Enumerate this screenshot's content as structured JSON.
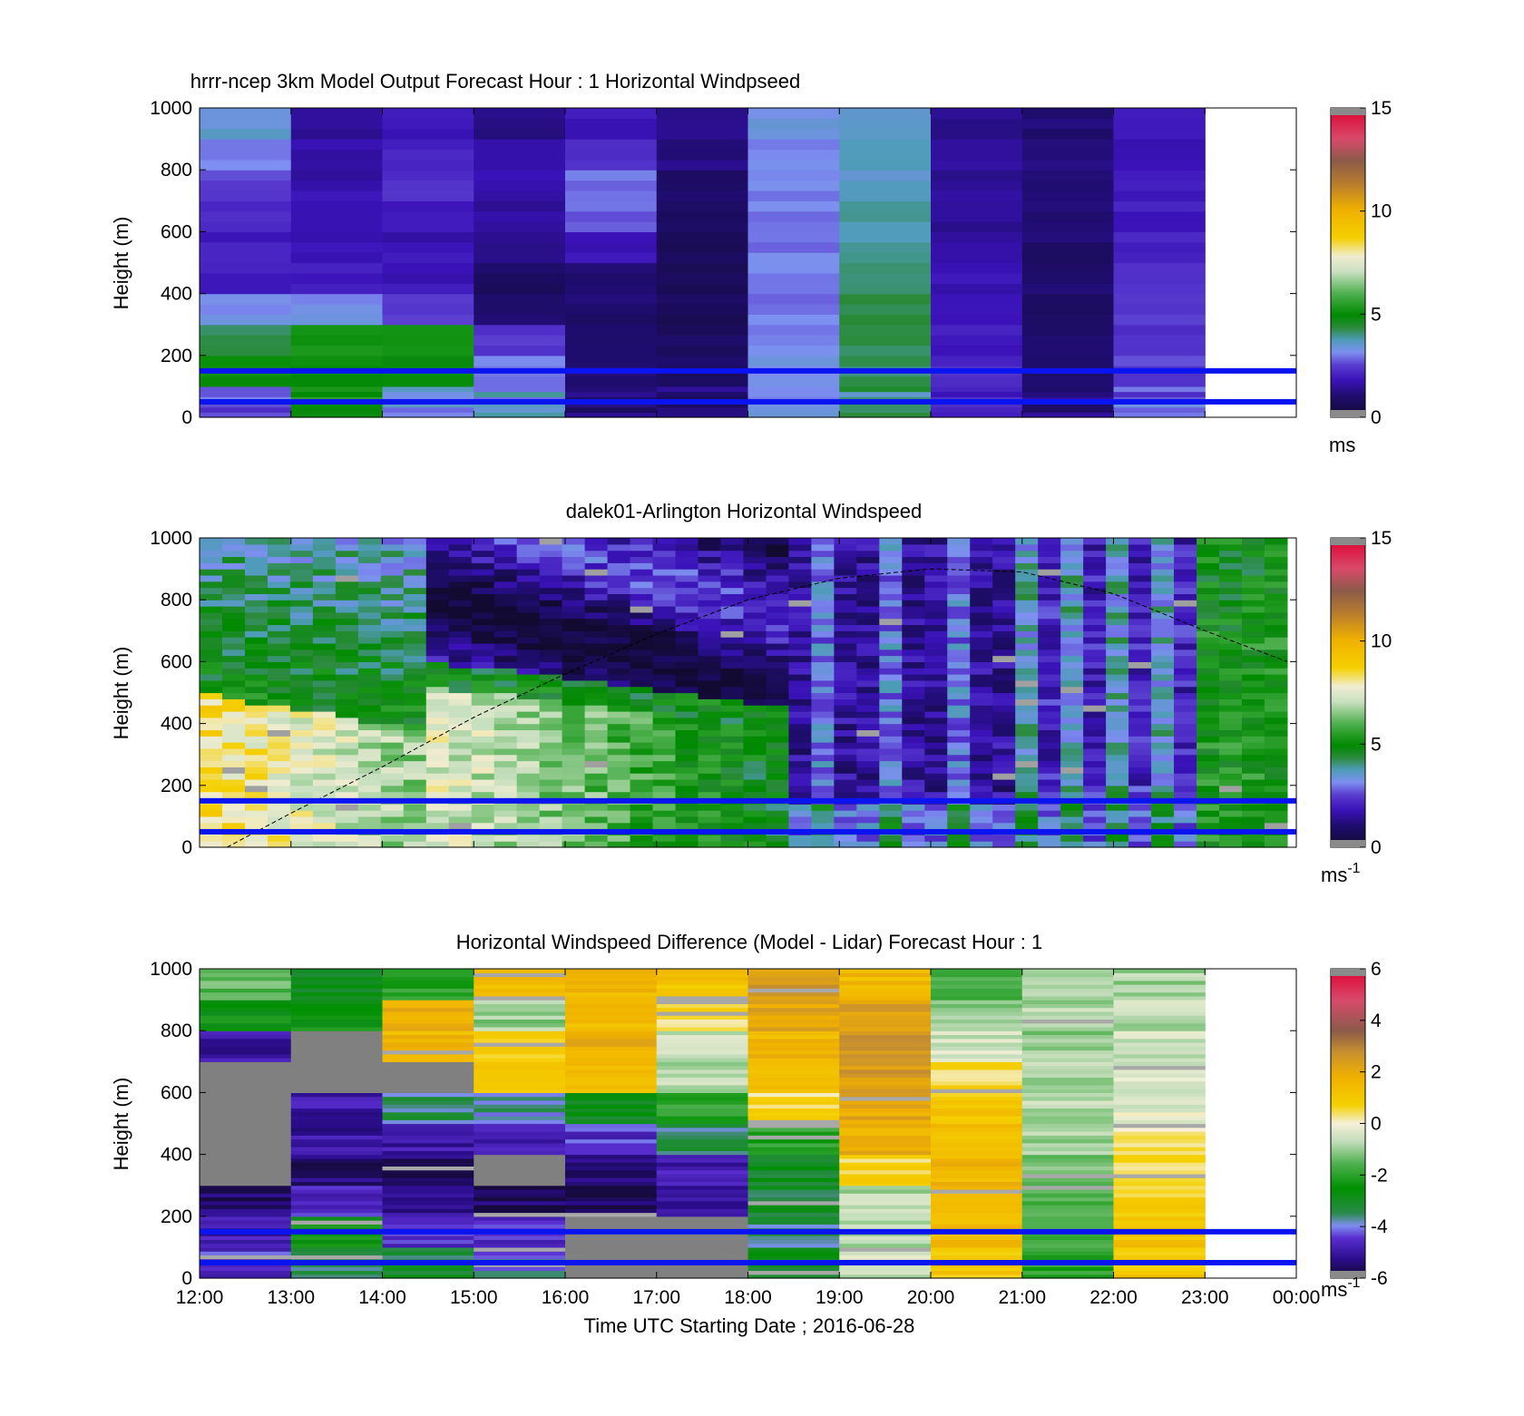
{
  "chart_data": [
    {
      "type": "heatmap",
      "title": "hrrr-ncep 3km Model Output   Forecast Hour : 1 Horizontal Windpseed",
      "ylabel": "Height (m)",
      "ylim": [
        0,
        1000
      ],
      "yticks": [
        "0",
        "200",
        "400",
        "600",
        "800",
        "1000"
      ],
      "x_categories": [
        "12:00",
        "13:00",
        "14:00",
        "15:00",
        "16:00",
        "17:00",
        "18:00",
        "19:00",
        "20:00",
        "21:00",
        "22:00",
        "23:00"
      ],
      "height_levels": [
        0,
        100,
        200,
        300,
        400,
        500,
        600,
        700,
        800,
        900
      ],
      "columns": [
        [
          2.5,
          5.0,
          4.2,
          3.2,
          2.0,
          2.0,
          2.2,
          2.5,
          3.0,
          3.5
        ],
        [
          5.0,
          5.0,
          5.2,
          3.2,
          2.0,
          1.8,
          1.8,
          1.7,
          1.7,
          1.6
        ],
        [
          3.2,
          5.0,
          5.2,
          2.5,
          1.8,
          1.8,
          1.9,
          2.3,
          2.0,
          1.9
        ],
        [
          3.4,
          3.0,
          2.4,
          1.0,
          0.9,
          1.2,
          1.5,
          1.8,
          1.6,
          1.2
        ],
        [
          1.2,
          1.1,
          1.1,
          1.0,
          1.0,
          1.8,
          2.8,
          3.0,
          2.4,
          1.9
        ],
        [
          1.0,
          0.9,
          0.8,
          0.7,
          0.7,
          0.7,
          0.8,
          1.0,
          1.3,
          1.4
        ],
        [
          3.2,
          3.2,
          3.0,
          3.0,
          3.0,
          3.0,
          3.0,
          3.0,
          3.0,
          3.3
        ],
        [
          4.0,
          4.2,
          4.2,
          4.2,
          4.2,
          3.8,
          3.8,
          3.6,
          3.6,
          3.7
        ],
        [
          2.3,
          2.2,
          2.0,
          1.8,
          1.8,
          1.6,
          1.5,
          1.5,
          1.4,
          1.4
        ],
        [
          1.0,
          1.0,
          1.0,
          1.0,
          1.0,
          1.0,
          1.0,
          1.0,
          1.1,
          1.1
        ],
        [
          2.8,
          2.5,
          2.4,
          2.4,
          2.2,
          2.1,
          2.0,
          1.9,
          1.9,
          1.9
        ]
      ],
      "reference_lines_m": [
        50,
        150
      ],
      "colorbar": {
        "min": 0,
        "max": 15,
        "ticks": [
          "0",
          "5",
          "10",
          "15"
        ],
        "unit": "ms"
      }
    },
    {
      "type": "heatmap",
      "title": "dalek01-Arlington  Horizontal Windspeed",
      "ylabel": "Height (m)",
      "ylim": [
        0,
        1000
      ],
      "yticks": [
        "0",
        "200",
        "400",
        "600",
        "800",
        "1000"
      ],
      "x_categories": [
        "12:00",
        "13:00",
        "14:00",
        "15:00",
        "16:00",
        "17:00",
        "18:00",
        "19:00",
        "20:00",
        "21:00",
        "22:00",
        "23:00"
      ],
      "time_range_hours": [
        12,
        24
      ],
      "observed_until_hour": 23.9,
      "reference_lines_m": [
        50,
        150
      ],
      "boundary_layer_curve": {
        "hours": [
          12.3,
          13,
          14,
          15,
          16,
          17,
          18,
          19,
          20,
          21,
          22,
          23,
          23.9
        ],
        "height_m": [
          0,
          110,
          260,
          420,
          560,
          690,
          800,
          870,
          900,
          890,
          820,
          700,
          600
        ]
      },
      "colorbar": {
        "min": 0,
        "max": 15,
        "ticks": [
          "0",
          "5",
          "10",
          "15"
        ],
        "unit": "ms",
        "unit_exp": "-1"
      }
    },
    {
      "type": "heatmap",
      "title": "Horizontal Windspeed Difference (Model - Lidar) Forecast Hour : 1",
      "ylabel": "Height (m)",
      "xlabel": "Time UTC  Starting Date ; 2016-06-28",
      "ylim": [
        0,
        1000
      ],
      "yticks": [
        "0",
        "200",
        "400",
        "600",
        "800",
        "1000"
      ],
      "x_ticks": [
        "12:00",
        "13:00",
        "14:00",
        "15:00",
        "16:00",
        "17:00",
        "18:00",
        "19:00",
        "20:00",
        "21:00",
        "22:00",
        "23:00",
        "00:00"
      ],
      "height_levels": [
        0,
        100,
        200,
        300,
        400,
        500,
        600,
        700,
        800,
        900
      ],
      "columns": [
        [
          -4.5,
          -4.8,
          -5.5,
          null,
          null,
          null,
          null,
          -5.0,
          -2.5,
          -1.5
        ],
        [
          -3.5,
          -2.5,
          -4.5,
          -5.5,
          -5.0,
          -5.0,
          null,
          null,
          -2.5,
          -2.8
        ],
        [
          -3.2,
          -4.5,
          -5.2,
          -5.5,
          -5.0,
          -3.5,
          null,
          1.5,
          1.8,
          -2.0
        ],
        [
          -4.0,
          -4.5,
          -5.5,
          null,
          -5.0,
          -3.8,
          1.0,
          0.8,
          -1.0,
          1.5
        ],
        [
          null,
          null,
          -5.5,
          -5.5,
          -4.5,
          -3.0,
          1.2,
          1.8,
          1.5,
          1.6
        ],
        [
          null,
          null,
          -5.0,
          -4.8,
          -3.5,
          -2.0,
          -0.8,
          -0.5,
          0.5,
          1.2
        ],
        [
          -3.0,
          -3.5,
          -3.2,
          -3.0,
          -2.0,
          0.5,
          1.5,
          1.6,
          2.2,
          2.4
        ],
        [
          -0.5,
          -0.8,
          -0.8,
          0.6,
          1.8,
          2.0,
          2.4,
          2.4,
          2.2,
          1.5
        ],
        [
          1.0,
          1.5,
          1.6,
          1.6,
          1.2,
          1.0,
          0.6,
          -0.5,
          -1.2,
          -1.8
        ],
        [
          -2.0,
          -1.8,
          -1.6,
          -1.2,
          -1.0,
          -0.8,
          -0.8,
          -1.0,
          -0.8,
          -0.6
        ],
        [
          1.0,
          1.2,
          0.8,
          0.6,
          0.3,
          -0.2,
          -0.4,
          -0.6,
          -0.7,
          -0.9
        ]
      ],
      "reference_lines_m": [
        50,
        150
      ],
      "colorbar": {
        "min": -6,
        "max": 6,
        "ticks": [
          "-6",
          "-4",
          "-2",
          "0",
          "2",
          "4",
          "6"
        ],
        "unit": "ms",
        "unit_exp": "-1"
      }
    }
  ]
}
